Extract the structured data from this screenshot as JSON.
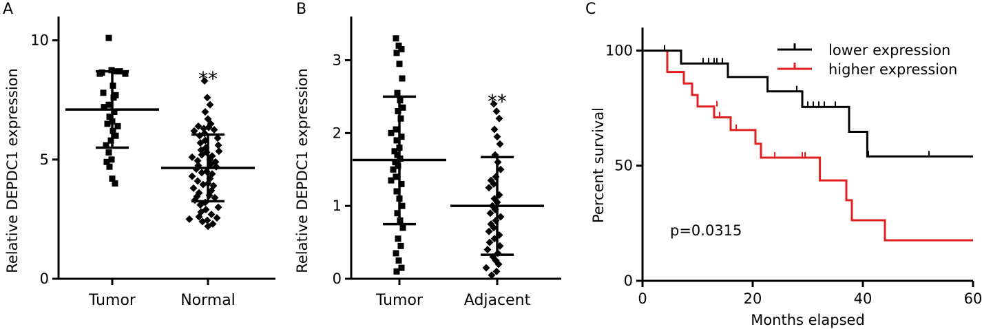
{
  "chart_data": [
    {
      "panel": "A",
      "type": "scatter",
      "ylabel": "Relative DEPDC1 expression",
      "ylim": [
        0,
        11
      ],
      "yticks": [
        0,
        5,
        10
      ],
      "categories": [
        "Tumor",
        "Normal"
      ],
      "significance": "**",
      "groups": [
        {
          "category": "Tumor",
          "marker": "square",
          "mean": 7.1,
          "sd_low": 5.5,
          "sd_high": 8.7,
          "values": [
            10.1,
            8.75,
            8.7,
            8.65,
            8.7,
            8.6,
            8.6,
            8.1,
            7.7,
            7.8,
            7.6,
            7.3,
            7.2,
            7.0,
            6.8,
            6.6,
            6.5,
            6.4,
            6.2,
            6.0,
            5.8,
            5.6,
            5.3,
            5.0,
            4.9,
            4.7,
            4.2,
            4.0
          ]
        },
        {
          "category": "Normal",
          "marker": "diamond",
          "mean": 4.65,
          "sd_low": 3.25,
          "sd_high": 6.05,
          "values": [
            8.3,
            7.6,
            7.3,
            7.0,
            6.7,
            6.5,
            6.4,
            6.35,
            6.3,
            6.25,
            6.2,
            6.1,
            6.0,
            5.9,
            5.8,
            5.7,
            5.6,
            5.5,
            5.4,
            5.35,
            5.3,
            5.2,
            5.15,
            5.1,
            5.0,
            4.95,
            4.9,
            4.8,
            4.75,
            4.7,
            4.6,
            4.5,
            4.45,
            4.4,
            4.3,
            4.2,
            4.1,
            4.0,
            3.95,
            3.9,
            3.8,
            3.7,
            3.6,
            3.5,
            3.45,
            3.4,
            3.3,
            3.2,
            3.1,
            3.0,
            2.9,
            2.8,
            2.7,
            2.6,
            2.55,
            2.5,
            2.45,
            2.4,
            2.3,
            2.2
          ]
        }
      ]
    },
    {
      "panel": "B",
      "type": "scatter",
      "ylabel": "Relative DEPDC1 expression",
      "ylim": [
        0,
        3.6
      ],
      "yticks": [
        0,
        1,
        2,
        3
      ],
      "categories": [
        "Tumor",
        "Adjacent"
      ],
      "significance": "**",
      "groups": [
        {
          "category": "Tumor",
          "marker": "square",
          "mean": 1.63,
          "sd_low": 0.75,
          "sd_high": 2.5,
          "values": [
            3.3,
            3.2,
            3.15,
            3.1,
            2.95,
            2.75,
            2.55,
            2.45,
            2.35,
            2.3,
            2.2,
            2.05,
            2.0,
            1.95,
            1.9,
            1.8,
            1.75,
            1.7,
            1.65,
            1.6,
            1.55,
            1.5,
            1.4,
            1.35,
            1.3,
            1.2,
            1.1,
            1.0,
            0.9,
            0.8,
            0.7,
            0.55,
            0.45,
            0.35,
            0.25,
            0.15,
            0.1
          ]
        },
        {
          "category": "Adjacent",
          "marker": "diamond",
          "mean": 1.0,
          "sd_low": 0.33,
          "sd_high": 1.67,
          "values": [
            2.4,
            2.3,
            2.2,
            2.05,
            1.95,
            1.85,
            1.7,
            1.6,
            1.5,
            1.4,
            1.35,
            1.3,
            1.25,
            1.15,
            1.1,
            1.05,
            1.0,
            0.95,
            0.9,
            0.85,
            0.8,
            0.75,
            0.7,
            0.65,
            0.6,
            0.55,
            0.5,
            0.45,
            0.4,
            0.35,
            0.3,
            0.25,
            0.2,
            0.15,
            0.1,
            0.05
          ]
        }
      ]
    },
    {
      "panel": "C",
      "type": "line",
      "subtype": "kaplan-meier",
      "xlabel": "Months elapsed",
      "ylabel": "Percent survival",
      "xlim": [
        0,
        60
      ],
      "ylim": [
        0,
        110
      ],
      "xticks": [
        0,
        20,
        40,
        60
      ],
      "yticks": [
        0,
        50,
        100
      ],
      "annotation": "p=0.0315",
      "legend_position": "top-right",
      "series": [
        {
          "name": "lower expression",
          "color": "#000000",
          "steps": [
            [
              0,
              100
            ],
            [
              7,
              100
            ],
            [
              7,
              94.4
            ],
            [
              15.5,
              94.4
            ],
            [
              15.5,
              88.5
            ],
            [
              22.7,
              88.5
            ],
            [
              22.7,
              82.3
            ],
            [
              29,
              82.3
            ],
            [
              29,
              75.5
            ],
            [
              37.5,
              75.5
            ],
            [
              37.5,
              64.7
            ],
            [
              40.8,
              64.7
            ],
            [
              40.8,
              54
            ],
            [
              60,
              54
            ]
          ],
          "censors": [
            [
              4,
              100
            ],
            [
              11,
              94.4
            ],
            [
              12,
              94.4
            ],
            [
              13,
              94.4
            ],
            [
              13.5,
              94.4
            ],
            [
              14.5,
              94.4
            ],
            [
              28,
              82.3
            ],
            [
              30,
              75.5
            ],
            [
              31,
              75.5
            ],
            [
              32,
              75.5
            ],
            [
              33,
              75.5
            ],
            [
              35,
              75.5
            ],
            [
              41,
              54
            ],
            [
              52,
              54
            ]
          ]
        },
        {
          "name": "higher expression",
          "color": "#e0201e",
          "steps": [
            [
              0,
              100
            ],
            [
              4.5,
              100
            ],
            [
              4.5,
              90.7
            ],
            [
              7.5,
              90.7
            ],
            [
              7.5,
              85.7
            ],
            [
              9,
              85.7
            ],
            [
              9,
              80.7
            ],
            [
              10,
              80.7
            ],
            [
              10,
              75.7
            ],
            [
              13,
              75.7
            ],
            [
              13,
              71
            ],
            [
              16,
              71
            ],
            [
              16,
              65.5
            ],
            [
              20.5,
              65.5
            ],
            [
              20.5,
              59.5
            ],
            [
              21.5,
              59.5
            ],
            [
              21.5,
              53.5
            ],
            [
              32.2,
              53.5
            ],
            [
              32.2,
              43.6
            ],
            [
              37,
              43.6
            ],
            [
              37,
              35
            ],
            [
              38,
              35
            ],
            [
              38,
              26.3
            ],
            [
              44,
              26.3
            ],
            [
              44,
              17.6
            ],
            [
              60,
              17.6
            ]
          ],
          "censors": [
            [
              13.5,
              75.7
            ],
            [
              14,
              71
            ],
            [
              17,
              65.5
            ],
            [
              24,
              53.5
            ],
            [
              29,
              53.5
            ],
            [
              29.5,
              53.5
            ]
          ]
        }
      ]
    }
  ]
}
